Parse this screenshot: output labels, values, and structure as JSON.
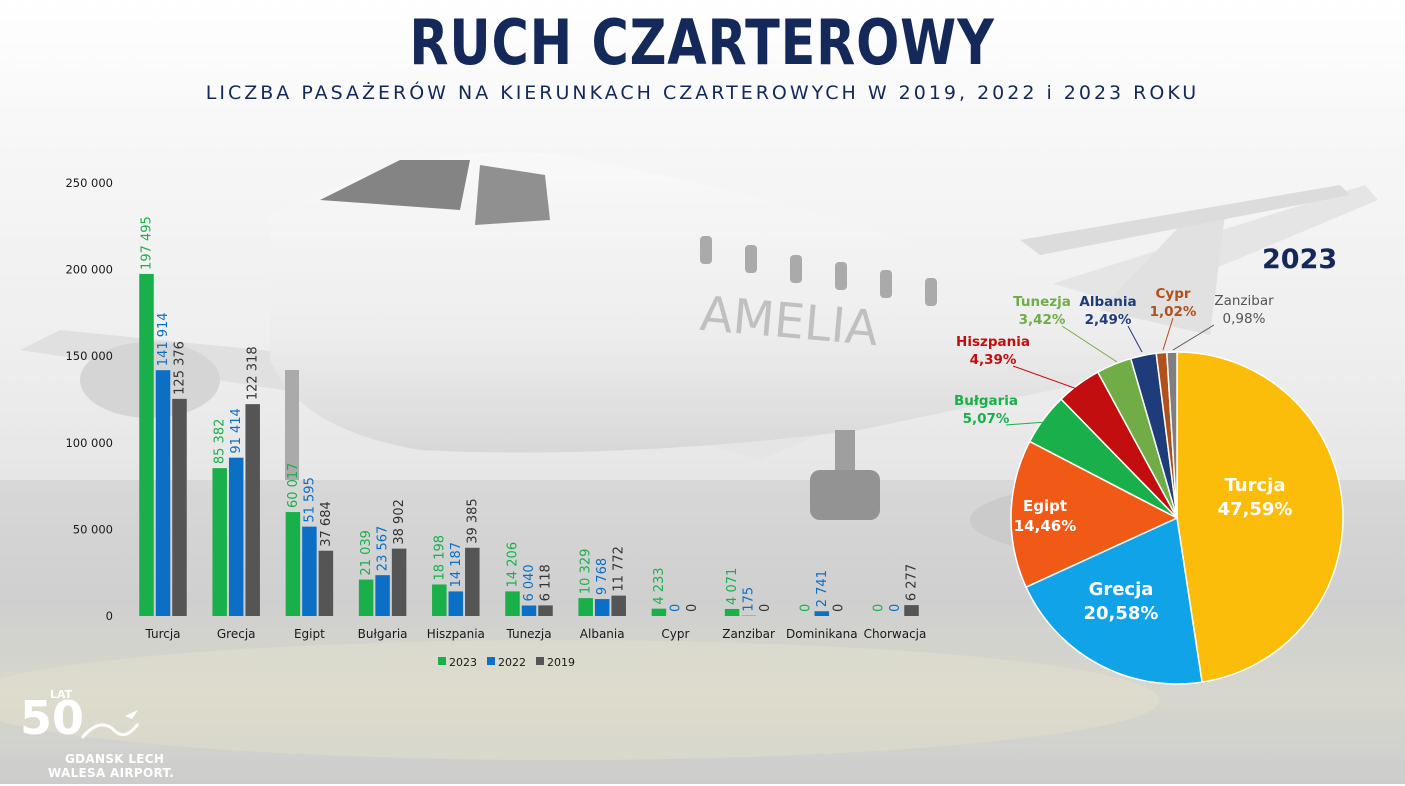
{
  "title": "RUCH CZARTEROWY",
  "subtitle": "LICZBA PASAŻERÓW NA KIERUNKACH CZARTEROWYCH W 2019, 2022 i 2023 ROKU",
  "background_text": "AMELIA",
  "logo": {
    "number": "50",
    "lat": "LAT",
    "line1": "GDANSK LECH",
    "line2": "WALESA AIRPORT."
  },
  "chart_data": [
    {
      "type": "bar",
      "categories": [
        "Turcja",
        "Grecja",
        "Egipt",
        "Bułgaria",
        "Hiszpania",
        "Tunezja",
        "Albania",
        "Cypr",
        "Zanzibar",
        "Dominikana",
        "Chorwacja"
      ],
      "series": [
        {
          "name": "2023",
          "color": "#19b04b",
          "values": [
            197495,
            85382,
            60017,
            21039,
            18198,
            14206,
            10329,
            4233,
            4071,
            0,
            0
          ],
          "labels": [
            "197 495",
            "85 382",
            "60 017",
            "21 039",
            "18 198",
            "14 206",
            "10 329",
            "4 233",
            "4 071",
            "0",
            "0"
          ]
        },
        {
          "name": "2022",
          "color": "#0b6fc6",
          "values": [
            141914,
            91414,
            51595,
            23567,
            14187,
            6040,
            9768,
            0,
            175,
            2741,
            0
          ],
          "labels": [
            "141 914",
            "91 414",
            "51 595",
            "23 567",
            "14 187",
            "6 040",
            "9 768",
            "0",
            "175",
            "2 741",
            "0"
          ]
        },
        {
          "name": "2019",
          "color": "#555555",
          "values": [
            125376,
            122318,
            37684,
            38902,
            39385,
            6118,
            11772,
            0,
            0,
            0,
            6277
          ],
          "labels": [
            "125 376",
            "122 318",
            "37 684",
            "38 902",
            "39 385",
            "6 118",
            "11 772",
            "0",
            "0",
            "0",
            "6 277"
          ]
        }
      ],
      "ylim": [
        0,
        250000
      ],
      "yticks": [
        0,
        50000,
        100000,
        150000,
        200000,
        250000
      ],
      "ytick_labels": [
        "0",
        "50 000",
        "100 000",
        "150 000",
        "200 000",
        "250 000"
      ],
      "legend": "bottom",
      "grid": false
    },
    {
      "type": "pie",
      "title": "2023",
      "slices": [
        {
          "label": "Turcja",
          "value": 47.59,
          "value_label": "47,59%",
          "color": "#fbbd0a",
          "text_color": "#ffffff"
        },
        {
          "label": "Grecja",
          "value": 20.58,
          "value_label": "20,58%",
          "color": "#10a3e8",
          "text_color": "#ffffff"
        },
        {
          "label": "Egipt",
          "value": 14.46,
          "value_label": "14,46%",
          "color": "#f05a16",
          "text_color": "#ffffff"
        },
        {
          "label": "Bułgaria",
          "value": 5.07,
          "value_label": "5,07%",
          "color": "#19b04b",
          "text_color": "#19b04b"
        },
        {
          "label": "Hiszpania",
          "value": 4.39,
          "value_label": "4,39%",
          "color": "#c20e0e",
          "text_color": "#c20e0e"
        },
        {
          "label": "Tunezja",
          "value": 3.42,
          "value_label": "3,42%",
          "color": "#70ad47",
          "text_color": "#70ad47"
        },
        {
          "label": "Albania",
          "value": 2.49,
          "value_label": "2,49%",
          "color": "#1f3c7a",
          "text_color": "#1f3c7a"
        },
        {
          "label": "Cypr",
          "value": 1.02,
          "value_label": "1,02%",
          "color": "#b0501a",
          "text_color": "#b0501a"
        },
        {
          "label": "Zanzibar",
          "value": 0.98,
          "value_label": "0,98%",
          "color": "#7f7f7f",
          "text_color": "#555555"
        }
      ]
    }
  ]
}
